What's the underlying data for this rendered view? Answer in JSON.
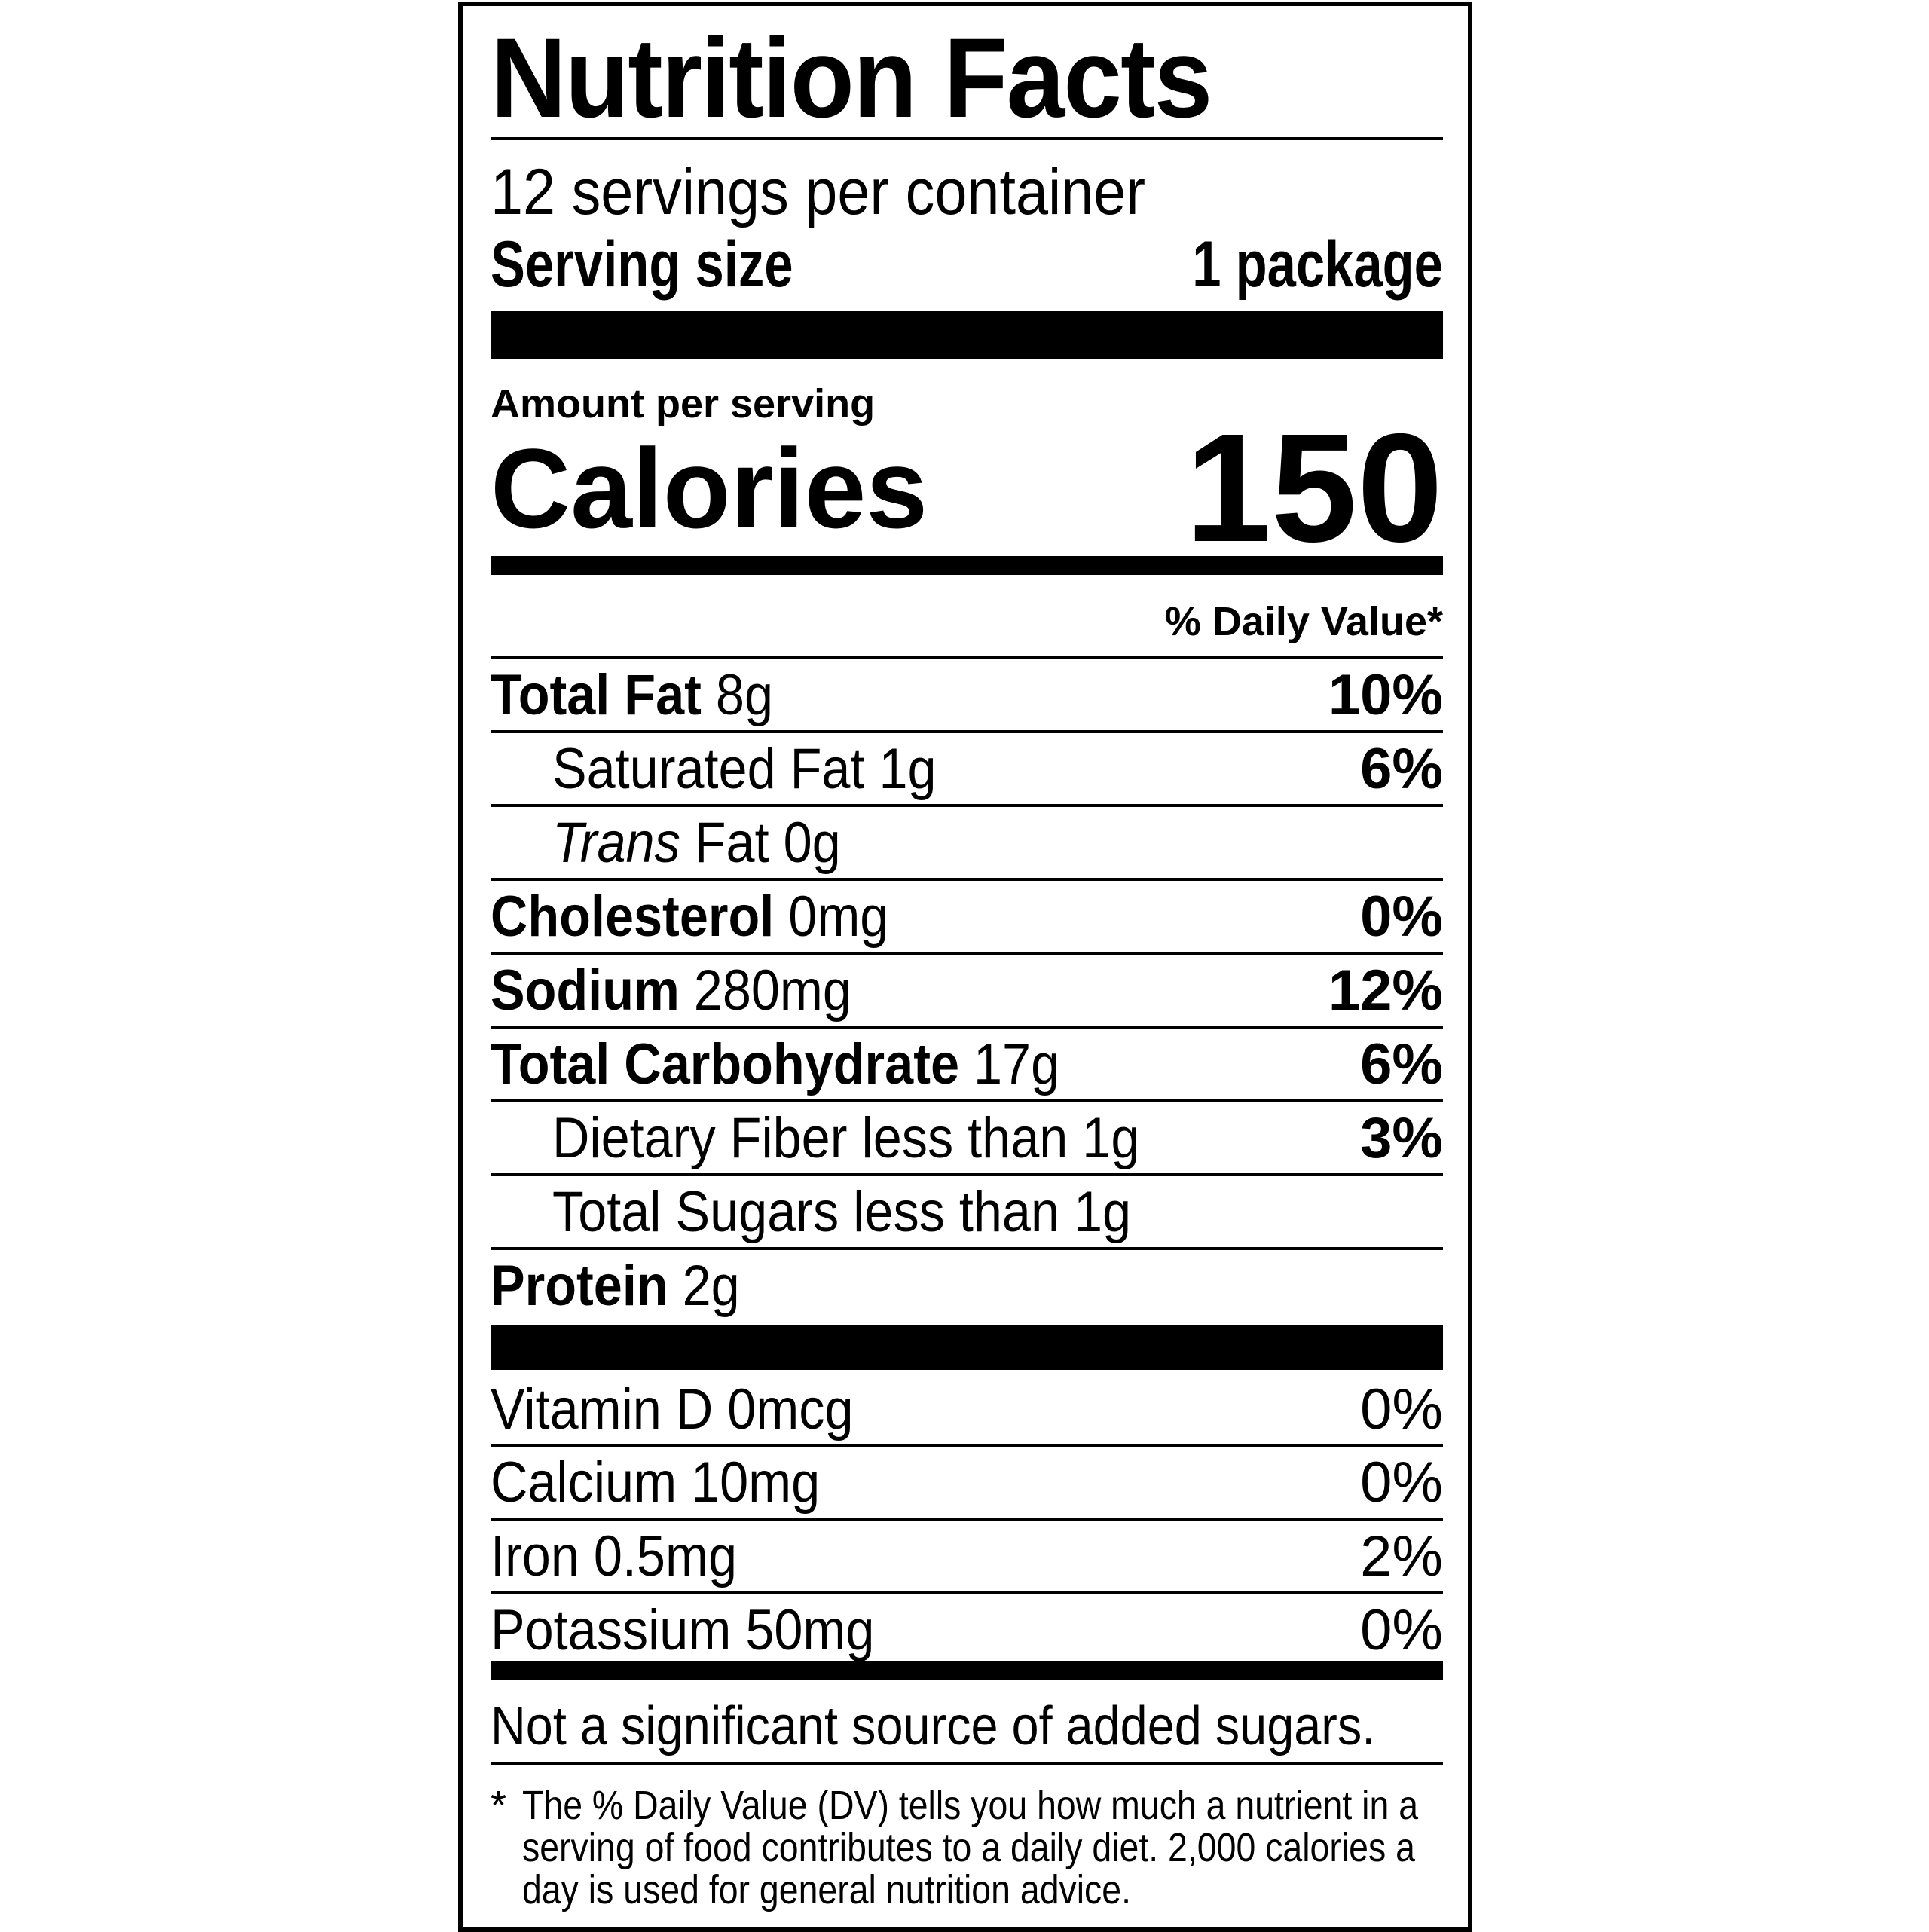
{
  "title": "Nutrition Facts",
  "servings_per_container": "12 servings per container",
  "serving_size_label": "Serving size",
  "serving_size_value": "1 package",
  "amount_per_serving": "Amount per serving",
  "calories_label": "Calories",
  "calories_value": "150",
  "daily_value_header": "% Daily Value*",
  "nutrients": [
    {
      "name": "Total Fat",
      "amount": "8g",
      "dv": "10%",
      "bold": true,
      "indent": false
    },
    {
      "name": "Saturated Fat",
      "amount": "1g",
      "dv": "6%",
      "bold": false,
      "indent": true
    },
    {
      "name": "Trans",
      "suffix": "Fat",
      "amount": "0g",
      "dv": "",
      "bold": false,
      "indent": true,
      "italic": true
    },
    {
      "name": "Cholesterol",
      "amount": "0mg",
      "dv": "0%",
      "bold": true,
      "indent": false
    },
    {
      "name": "Sodium",
      "amount": "280mg",
      "dv": "12%",
      "bold": true,
      "indent": false
    },
    {
      "name": "Total Carbohydrate",
      "amount": "17g",
      "dv": "6%",
      "bold": true,
      "indent": false
    },
    {
      "name": "Dietary Fiber",
      "amount": "less than 1g",
      "dv": "3%",
      "bold": false,
      "indent": true
    },
    {
      "name": "Total Sugars",
      "amount": "less than 1g",
      "dv": "",
      "bold": false,
      "indent": true
    },
    {
      "name": "Protein",
      "amount": "2g",
      "dv": "",
      "bold": true,
      "indent": false
    }
  ],
  "vitamins": [
    {
      "name": "Vitamin D",
      "amount": "0mcg",
      "dv": "0%"
    },
    {
      "name": "Calcium",
      "amount": "10mg",
      "dv": "0%"
    },
    {
      "name": "Iron",
      "amount": "0.5mg",
      "dv": "2%"
    },
    {
      "name": "Potassium",
      "amount": "50mg",
      "dv": "0%"
    }
  ],
  "added_sugars_note": "Not a significant source of added sugars.",
  "footnote_mark": "*",
  "footnote": "The % Daily Value (DV) tells you how much a nutrient in a serving of food contributes to a daily diet. 2,000 calories a day is used for general nutrition advice."
}
